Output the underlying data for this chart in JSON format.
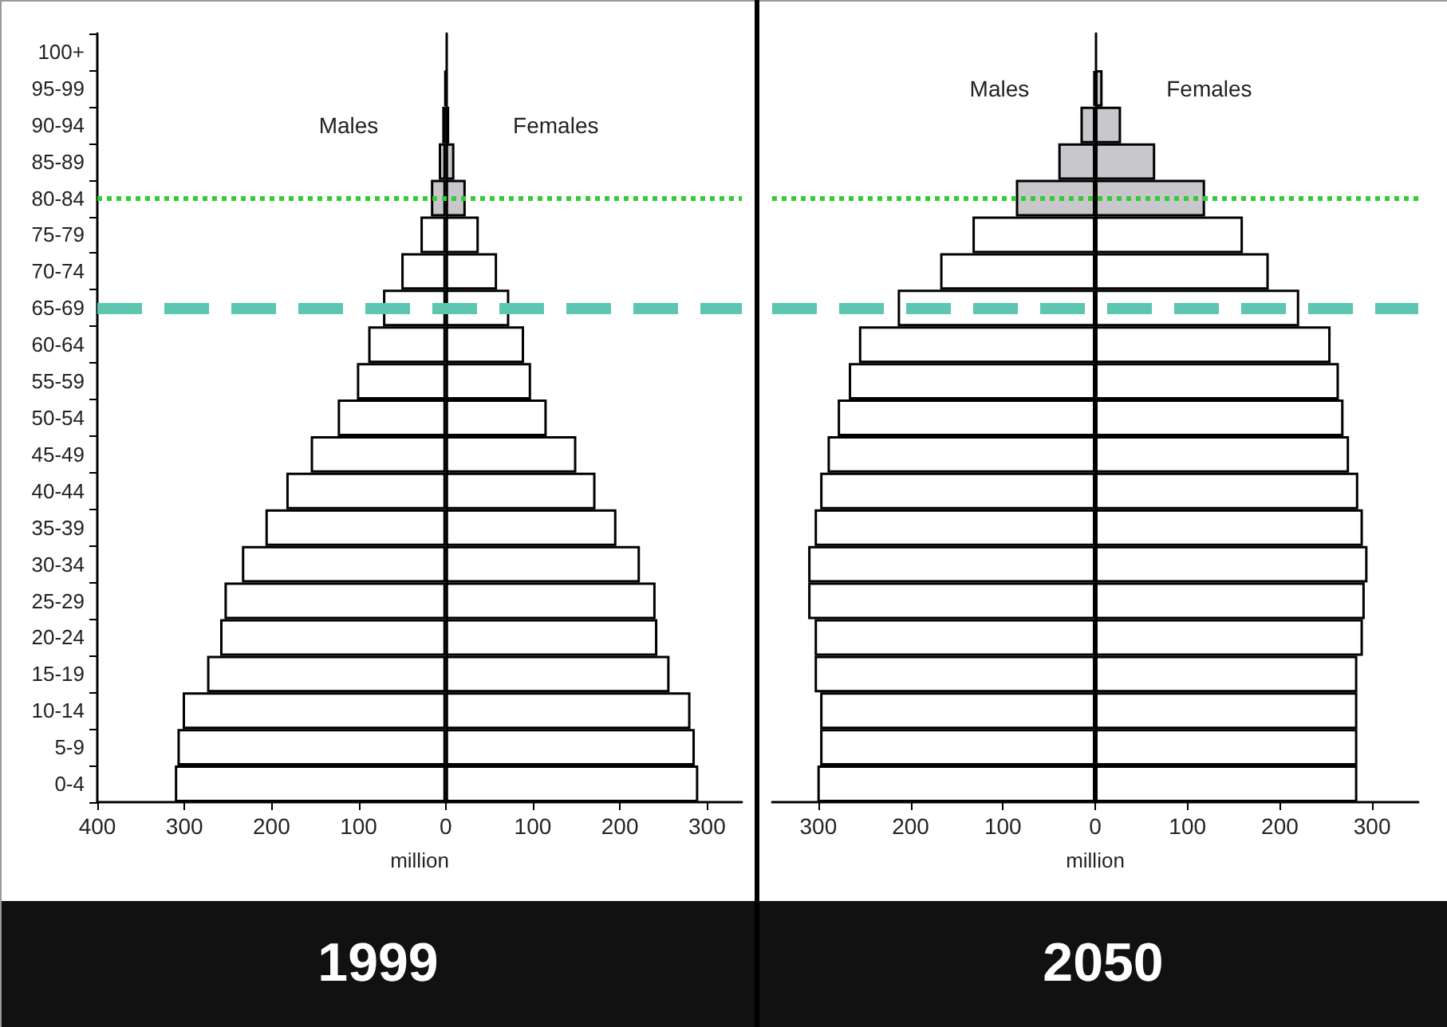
{
  "chart_data": [
    {
      "type": "bar",
      "orientation": "horizontal",
      "stacked": true,
      "title": "1999",
      "xlabel": "million",
      "categories": [
        "100+",
        "95-99",
        "90-94",
        "85-89",
        "80-84",
        "75-79",
        "70-74",
        "65-69",
        "60-64",
        "55-59",
        "50-54",
        "45-49",
        "40-44",
        "35-39",
        "30-34",
        "25-29",
        "20-24",
        "15-19",
        "10-14",
        "5-9",
        "0-4"
      ],
      "series": [
        {
          "name": "Males",
          "colors": [
            "#c8c8cc",
            "#000000",
            "#c8c8cc",
            "#c8c8cc",
            "#c8c8cc",
            "#ffffff",
            "#ffffff",
            "#ffffff",
            "#ffffff",
            "#ffffff",
            "#ffffff",
            "#ffffff",
            "#ffffff",
            "#ffffff",
            "#ffffff",
            "#ffffff",
            "#ffffff",
            "#ffffff",
            "#ffffff",
            "#ffffff",
            "#ffffff"
          ],
          "values": [
            null,
            -1,
            -4,
            -8,
            -17,
            -29,
            -51,
            -72,
            -89,
            -102,
            -124,
            -155,
            -183,
            -207,
            -234,
            -254,
            -259,
            -274,
            -302,
            -308,
            -311
          ]
        },
        {
          "name": "Females",
          "colors": [
            "#c8c8cc",
            "#000000",
            "#c8c8cc",
            "#c8c8cc",
            "#c8c8cc",
            "#ffffff",
            "#ffffff",
            "#ffffff",
            "#ffffff",
            "#ffffff",
            "#ffffff",
            "#ffffff",
            "#ffffff",
            "#ffffff",
            "#ffffff",
            "#ffffff",
            "#ffffff",
            "#ffffff",
            "#ffffff",
            "#ffffff",
            "#ffffff"
          ],
          "values": [
            null,
            1,
            4,
            10,
            23,
            38,
            59,
            73,
            90,
            98,
            116,
            150,
            172,
            196,
            223,
            241,
            243,
            257,
            281,
            286,
            290
          ]
        }
      ],
      "xlim": [
        -400,
        340
      ],
      "xticks": [
        {
          "value": -400,
          "label": "400"
        },
        {
          "value": -300,
          "label": "300"
        },
        {
          "value": -200,
          "label": "200"
        },
        {
          "value": -100,
          "label": "100"
        },
        0,
        100,
        200,
        300
      ],
      "ref_lines": [
        {
          "axis": "y",
          "value": "80-84",
          "color": "#33cc33",
          "line_style": "dotted"
        },
        {
          "axis": "y",
          "value": "65-69",
          "color": "#5cc6b0",
          "line_style": "dashed"
        }
      ]
    },
    {
      "type": "bar",
      "orientation": "horizontal",
      "stacked": true,
      "title": "2050",
      "xlabel": "million",
      "tick_labels": "x",
      "categories": [
        "100+",
        "95-99",
        "90-94",
        "85-89",
        "80-84",
        "75-79",
        "70-74",
        "65-69",
        "60-64",
        "55-59",
        "50-54",
        "45-49",
        "40-44",
        "35-39",
        "30-34",
        "25-29",
        "20-24",
        "15-19",
        "10-14",
        "5-9",
        "0-4"
      ],
      "series": [
        {
          "name": "Males",
          "colors": [
            "#c8c8cc",
            "#000000",
            "#c8c8cc",
            "#c8c8cc",
            "#c8c8cc",
            "#ffffff",
            "#ffffff",
            "#ffffff",
            "#ffffff",
            "#ffffff",
            "#ffffff",
            "#ffffff",
            "#ffffff",
            "#ffffff",
            "#ffffff",
            "#ffffff",
            "#ffffff",
            "#ffffff",
            "#ffffff",
            "#ffffff",
            "#ffffff"
          ],
          "values": [
            null,
            -2,
            -16,
            -40,
            -86,
            -133,
            -168,
            -214,
            -256,
            -267,
            -279,
            -290,
            -298,
            -304,
            -311,
            -311,
            -304,
            -304,
            -298,
            -298,
            -301
          ]
        },
        {
          "name": "Females",
          "colors": [
            "#c8c8cc",
            "#c8c8cc",
            "#c8c8cc",
            "#c8c8cc",
            "#c8c8cc",
            "#ffffff",
            "#ffffff",
            "#ffffff",
            "#ffffff",
            "#ffffff",
            "#ffffff",
            "#ffffff",
            "#ffffff",
            "#ffffff",
            "#ffffff",
            "#ffffff",
            "#ffffff",
            "#ffffff",
            "#ffffff",
            "#ffffff",
            "#ffffff"
          ],
          "values": [
            null,
            8,
            28,
            65,
            119,
            160,
            188,
            221,
            255,
            264,
            269,
            275,
            285,
            290,
            295,
            292,
            290,
            284,
            284,
            284,
            284
          ]
        }
      ],
      "xlim": [
        -350,
        350
      ],
      "xticks": [
        {
          "value": -300,
          "label": "300"
        },
        {
          "value": -200,
          "label": "200"
        },
        {
          "value": -100,
          "label": "100"
        },
        0,
        100,
        200,
        300
      ],
      "ref_lines": [
        {
          "axis": "y",
          "value": "80-84",
          "color": "#33cc33",
          "line_style": "dotted"
        },
        {
          "axis": "y",
          "value": "65-69",
          "color": "#5cc6b0",
          "line_style": "dashed"
        }
      ]
    }
  ]
}
